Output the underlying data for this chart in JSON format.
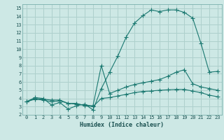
{
  "xlabel": "Humidex (Indice chaleur)",
  "bg_color": "#cde8e5",
  "grid_color": "#aed0cc",
  "line_color": "#1a7870",
  "xlim": [
    -0.5,
    23.5
  ],
  "ylim": [
    2,
    15.5
  ],
  "xticks": [
    0,
    1,
    2,
    3,
    4,
    5,
    6,
    7,
    8,
    9,
    10,
    11,
    12,
    13,
    14,
    15,
    16,
    17,
    18,
    19,
    20,
    21,
    22,
    23
  ],
  "yticks": [
    2,
    3,
    4,
    5,
    6,
    7,
    8,
    9,
    10,
    11,
    12,
    13,
    14,
    15
  ],
  "line1_x": [
    0,
    1,
    2,
    3,
    4,
    5,
    6,
    7,
    8,
    9,
    10,
    11,
    12,
    13,
    14,
    15,
    16,
    17,
    18,
    19,
    20,
    21,
    22,
    23
  ],
  "line1_y": [
    3.6,
    4.1,
    4.0,
    3.2,
    3.5,
    2.7,
    3.1,
    3.3,
    2.6,
    5.2,
    7.2,
    9.2,
    11.5,
    13.2,
    14.1,
    14.8,
    14.6,
    14.8,
    14.8,
    14.5,
    13.8,
    10.7,
    7.2,
    7.3
  ],
  "line2_x": [
    0,
    1,
    2,
    3,
    4,
    5,
    6,
    7,
    8,
    9,
    10,
    11,
    12,
    13,
    14,
    15,
    16,
    17,
    18,
    19,
    20,
    21,
    22,
    23
  ],
  "line2_y": [
    3.6,
    4.0,
    3.9,
    3.8,
    3.8,
    3.4,
    3.3,
    3.2,
    3.1,
    8.0,
    4.6,
    5.0,
    5.4,
    5.7,
    5.9,
    6.1,
    6.3,
    6.7,
    7.2,
    7.5,
    5.8,
    5.4,
    5.2,
    5.0
  ],
  "line3_x": [
    0,
    1,
    2,
    3,
    4,
    5,
    6,
    7,
    8,
    9,
    10,
    11,
    12,
    13,
    14,
    15,
    16,
    17,
    18,
    19,
    20,
    21,
    22,
    23
  ],
  "line3_y": [
    3.6,
    3.9,
    3.8,
    3.6,
    3.7,
    3.4,
    3.4,
    3.1,
    3.0,
    4.0,
    4.1,
    4.3,
    4.5,
    4.7,
    4.85,
    4.9,
    5.0,
    5.05,
    5.1,
    5.1,
    4.9,
    4.7,
    4.4,
    4.2
  ],
  "marker": "+",
  "markersize": 4
}
